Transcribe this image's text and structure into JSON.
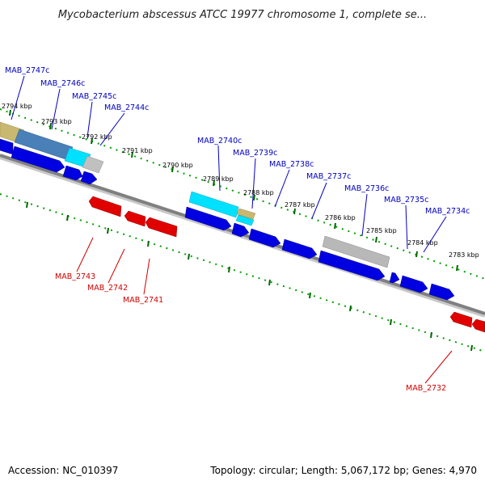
{
  "title": "Mycobacterium abscessus ATCC 19977 chromosome 1, complete se...",
  "footer": {
    "accession": "Accession: NC_010397",
    "topology": "Topology: circular; Length: 5,067,172 bp; Genes: 4,970"
  },
  "colors": {
    "backbone": "#808080",
    "forward_gene": "#0000e0",
    "reverse_gene": "#e00000",
    "forward_label": "#0000c0",
    "reverse_label": "#d00000",
    "tick_dots": "#00a000",
    "tick_major": "#006600",
    "cyan_feature": "#00e0ff",
    "gray_feature": "#b8b8b8",
    "tan_feature": "#c8b870",
    "steel_feature": "#4a80b8"
  },
  "tick_labels": [
    "2794 kbp",
    "2793 kbp",
    "2792 kbp",
    "2791 kbp",
    "2790 kbp",
    "2789 kbp",
    "2788 kbp",
    "2787 kbp",
    "2786 kbp",
    "2785 kbp",
    "2784 kbp",
    "2783 kbp"
  ],
  "forward_genes": [
    "MAB_2747c",
    "MAB_2746c",
    "MAB_2745c",
    "MAB_2744c",
    "MAB_2740c",
    "MAB_2739c",
    "MAB_2738c",
    "MAB_2737c",
    "MAB_2736c",
    "MAB_2735c",
    "MAB_2734c"
  ],
  "reverse_genes": [
    "MAB_2743",
    "MAB_2742",
    "MAB_2741",
    "MAB_2732"
  ]
}
